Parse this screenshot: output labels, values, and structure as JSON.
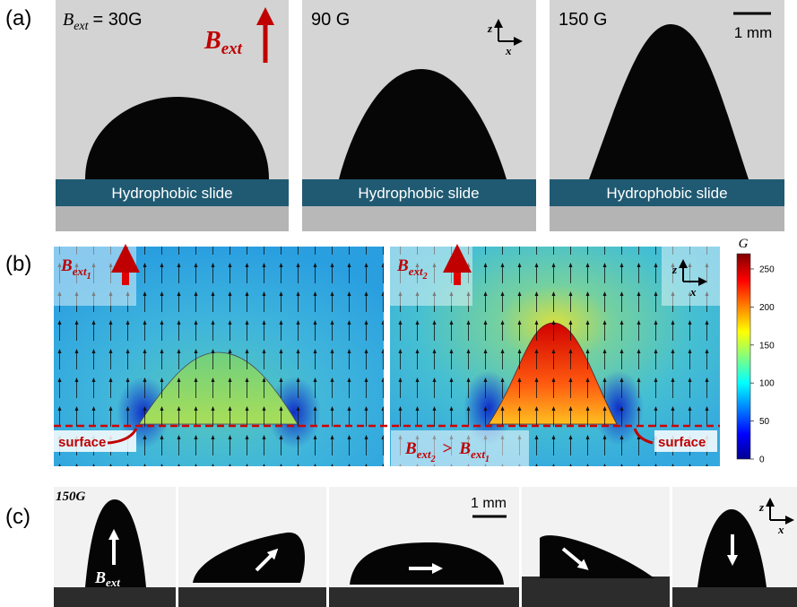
{
  "panel_a": {
    "label": "(a)",
    "frames": [
      {
        "field": {
          "symbol": "B",
          "subscript": "ext",
          "text": "= 30G"
        },
        "slide": "Hydrophobic slide"
      },
      {
        "field": "90 G",
        "slide": "Hydrophobic slide"
      },
      {
        "field": "150 G",
        "slide": "Hydrophobic slide"
      }
    ],
    "field_arrow": {
      "symbol": "B",
      "subscript": "ext"
    },
    "scale_bar": "1 mm",
    "axes": {
      "z": "z",
      "x": "x"
    }
  },
  "panel_b": {
    "label": "(b)",
    "left": {
      "field": {
        "symbol": "B",
        "subscript": "ext",
        "index": "1"
      },
      "surface": "surface"
    },
    "right": {
      "field": {
        "symbol": "B",
        "subscript": "ext",
        "index": "2"
      },
      "surface": "surface"
    },
    "comparison": {
      "left": {
        "symbol": "B",
        "subscript": "ext",
        "index": "2"
      },
      "operator": ">",
      "right": {
        "symbol": "B",
        "subscript": "ext",
        "index": "1"
      }
    },
    "axes": {
      "z": "z",
      "x": "x"
    },
    "colorbar": {
      "label": "G",
      "range": [
        0,
        270
      ],
      "ticks": [
        0,
        50,
        100,
        150,
        200,
        250
      ]
    }
  },
  "panel_c": {
    "label": "(c)",
    "field_value": "150G",
    "scale_bar": "1 mm",
    "field": {
      "symbol": "B",
      "subscript": "ext"
    },
    "axes": {
      "z": "z",
      "x": "x"
    }
  }
}
